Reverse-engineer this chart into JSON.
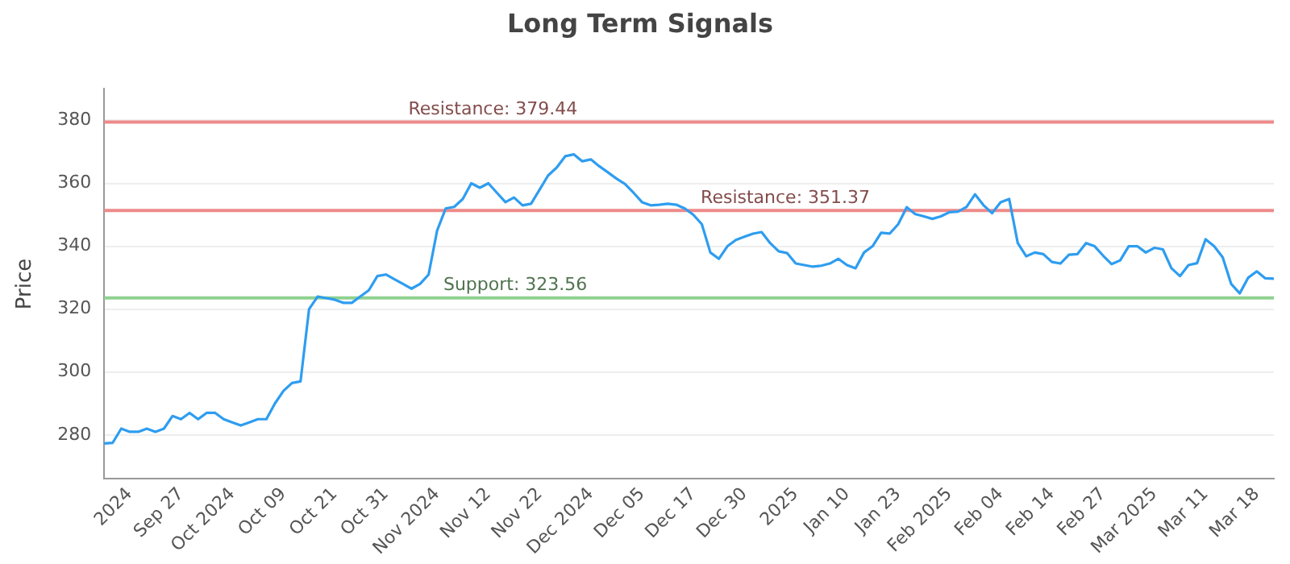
{
  "chart_data": {
    "type": "line",
    "title": "Long Term Signals",
    "ylabel": "Price",
    "categories": [
      null,
      null,
      null,
      "2024",
      null,
      null,
      null,
      null,
      null,
      "Sep 27",
      null,
      null,
      null,
      null,
      null,
      "Oct 2024",
      null,
      null,
      null,
      null,
      null,
      "Oct 09",
      null,
      null,
      null,
      null,
      null,
      "Oct 21",
      null,
      null,
      null,
      null,
      null,
      "Oct 31",
      null,
      null,
      null,
      null,
      null,
      "Nov 2024",
      null,
      null,
      null,
      null,
      null,
      "Nov 12",
      null,
      null,
      null,
      null,
      null,
      "Nov 22",
      null,
      null,
      null,
      null,
      null,
      "Dec 2024",
      null,
      null,
      null,
      null,
      null,
      "Dec 05",
      null,
      null,
      null,
      null,
      null,
      "Dec 17",
      null,
      null,
      null,
      null,
      null,
      "Dec 30",
      null,
      null,
      null,
      null,
      null,
      "2025",
      null,
      null,
      null,
      null,
      null,
      "Jan 10",
      null,
      null,
      null,
      null,
      null,
      "Jan 23",
      null,
      null,
      null,
      null,
      null,
      "Feb 2025",
      null,
      null,
      null,
      null,
      null,
      "Feb 04",
      null,
      null,
      null,
      null,
      null,
      "Feb 14",
      null,
      null,
      null,
      null,
      null,
      "Feb 27",
      null,
      null,
      null,
      null,
      null,
      "Mar 2025",
      null,
      null,
      null,
      null,
      null,
      "Mar 11",
      null,
      null,
      null,
      null,
      null,
      "Mar 18",
      null,
      null
    ],
    "series": [
      {
        "color": "#2e9df0",
        "values": [
          277.3,
          277.5,
          282,
          281,
          281,
          282,
          281,
          282,
          286,
          285,
          287,
          285,
          287,
          287,
          285,
          284,
          283,
          284,
          285,
          285,
          290,
          294,
          296.5,
          297,
          320,
          324,
          323.5,
          323,
          322,
          322,
          324,
          326,
          330.5,
          331,
          329.5,
          328,
          326.5,
          328,
          331,
          345,
          352,
          352.5,
          355,
          360,
          358.6,
          360,
          357,
          354,
          355.5,
          353,
          353.5,
          358,
          362.5,
          365,
          368.6,
          369.2,
          367,
          367.6,
          365.4,
          363.5,
          361.5,
          359.8,
          357,
          354,
          353,
          353.2,
          353.5,
          353.2,
          352,
          350,
          347,
          338,
          336,
          340,
          342,
          343,
          344,
          344.5,
          341,
          338.4,
          337.8,
          334.5,
          334,
          333.5,
          333.8,
          334.5,
          336,
          334,
          333,
          338,
          340,
          344.3,
          344,
          347,
          352.4,
          350.2,
          349.5,
          348.7,
          349.5,
          350.8,
          351,
          352.5,
          356.5,
          353,
          350.5,
          354,
          355,
          341,
          336.8,
          338,
          337.5,
          335,
          334.5,
          337.3,
          337.5,
          341,
          340,
          337,
          334.3,
          335.5,
          340,
          340,
          338,
          339.5,
          339,
          333,
          330.5,
          334,
          334.6,
          342.2,
          340,
          336.5,
          328,
          325,
          330,
          332,
          329.8,
          329.7
        ]
      }
    ],
    "ylim": [
      266,
      390
    ],
    "yticks": [
      280,
      300,
      320,
      340,
      360,
      380
    ],
    "grid": "y",
    "legend": false,
    "marker": "none",
    "line_style": "solid",
    "ref_lines": [
      {
        "axis": "y",
        "value": 379.44,
        "label": "Resistance: 379.44",
        "color": "#ee8a8a"
      },
      {
        "axis": "y",
        "value": 351.37,
        "label": "Resistance: 351.37",
        "color": "#ee8a8a"
      },
      {
        "axis": "y",
        "value": 323.56,
        "label": "Support: 323.56",
        "color": "#8fd18f"
      }
    ]
  }
}
